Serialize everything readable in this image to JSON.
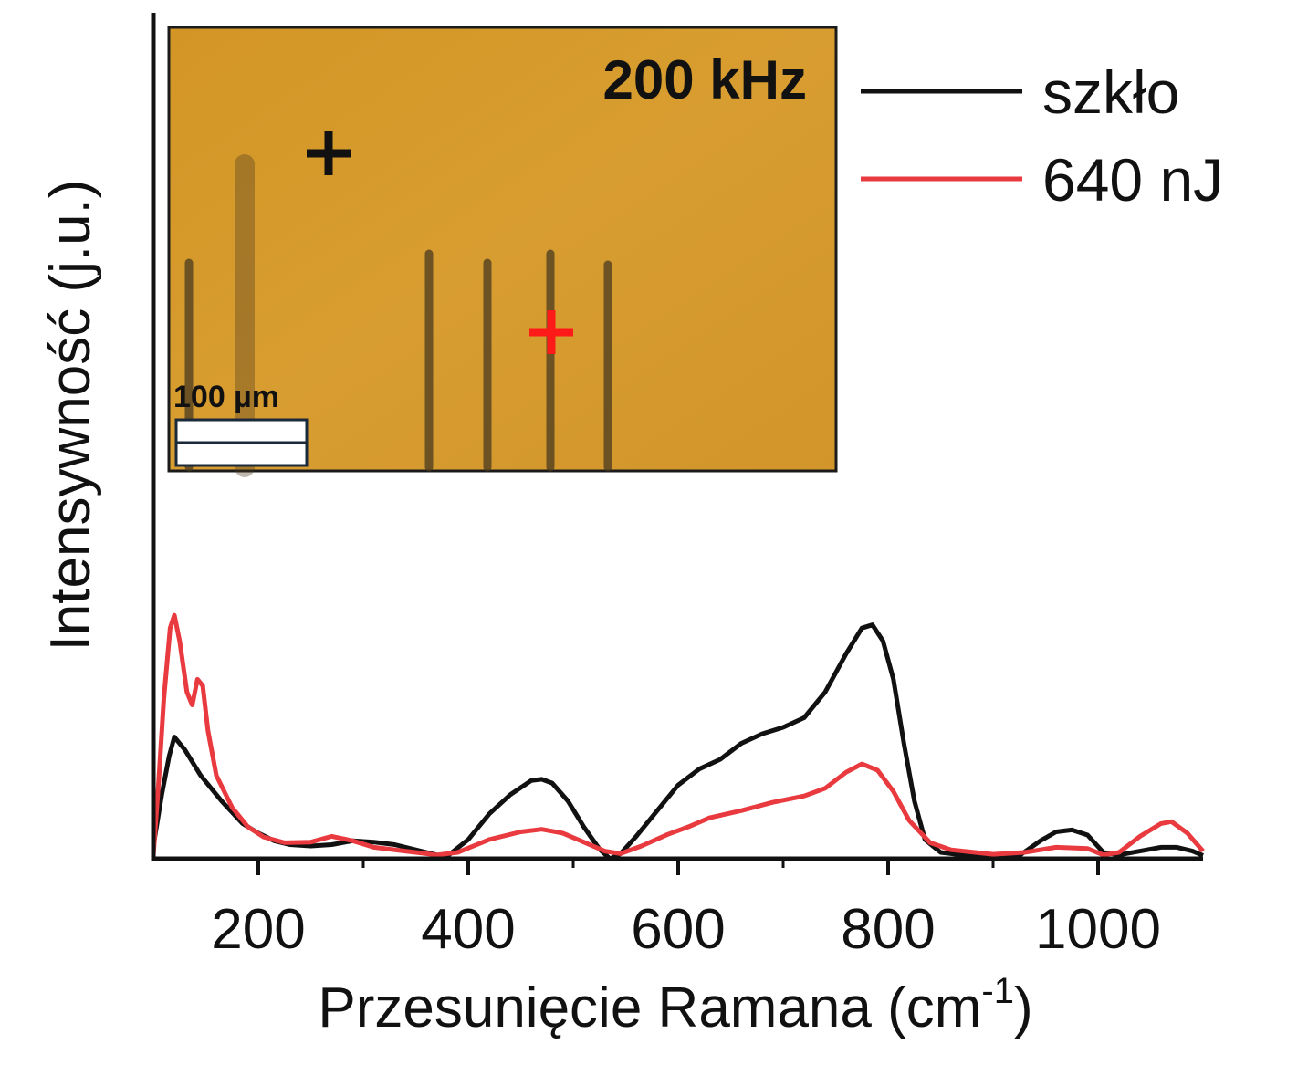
{
  "chart_data": {
    "type": "line",
    "xlabel": "Przesunięcie Ramana (cm",
    "xlabel_sup": "-1",
    "xlabel_close": ")",
    "ylabel": "Intensywność (j.u.)",
    "xlim": [
      100,
      1100
    ],
    "ylim": [
      0,
      1.32
    ],
    "x_ticks": [
      200,
      400,
      600,
      800,
      1000
    ],
    "x_tick_labels": [
      "200",
      "400",
      "600",
      "800",
      "1000"
    ],
    "x_minor_ticks": [
      300,
      500,
      700,
      900
    ],
    "legend_position": "top-right",
    "series": [
      {
        "name": "szkło",
        "color": "#111111",
        "points": [
          [
            100,
            0.02
          ],
          [
            108,
            0.1
          ],
          [
            115,
            0.16
          ],
          [
            120,
            0.19
          ],
          [
            130,
            0.17
          ],
          [
            145,
            0.13
          ],
          [
            165,
            0.09
          ],
          [
            185,
            0.055
          ],
          [
            200,
            0.04
          ],
          [
            215,
            0.028
          ],
          [
            230,
            0.022
          ],
          [
            250,
            0.02
          ],
          [
            270,
            0.022
          ],
          [
            290,
            0.028
          ],
          [
            310,
            0.026
          ],
          [
            330,
            0.022
          ],
          [
            350,
            0.014
          ],
          [
            370,
            0.006
          ],
          [
            380,
            0.004
          ],
          [
            400,
            0.03
          ],
          [
            420,
            0.07
          ],
          [
            440,
            0.1
          ],
          [
            460,
            0.122
          ],
          [
            470,
            0.124
          ],
          [
            480,
            0.118
          ],
          [
            495,
            0.09
          ],
          [
            510,
            0.05
          ],
          [
            525,
            0.015
          ],
          [
            535,
            0.0
          ],
          [
            545,
            0.008
          ],
          [
            560,
            0.035
          ],
          [
            580,
            0.075
          ],
          [
            600,
            0.115
          ],
          [
            620,
            0.14
          ],
          [
            640,
            0.155
          ],
          [
            660,
            0.18
          ],
          [
            680,
            0.195
          ],
          [
            700,
            0.205
          ],
          [
            720,
            0.22
          ],
          [
            740,
            0.26
          ],
          [
            760,
            0.32
          ],
          [
            775,
            0.36
          ],
          [
            785,
            0.365
          ],
          [
            795,
            0.34
          ],
          [
            805,
            0.28
          ],
          [
            815,
            0.18
          ],
          [
            825,
            0.09
          ],
          [
            835,
            0.03
          ],
          [
            850,
            0.01
          ],
          [
            870,
            0.006
          ],
          [
            900,
            0.004
          ],
          [
            925,
            0.005
          ],
          [
            945,
            0.028
          ],
          [
            960,
            0.042
          ],
          [
            975,
            0.045
          ],
          [
            990,
            0.037
          ],
          [
            1005,
            0.01
          ],
          [
            1020,
            0.006
          ],
          [
            1040,
            0.012
          ],
          [
            1060,
            0.018
          ],
          [
            1075,
            0.018
          ],
          [
            1090,
            0.012
          ],
          [
            1100,
            0.005
          ]
        ]
      },
      {
        "name": "640 nJ",
        "color": "#e83a3f",
        "points": [
          [
            100,
            0.005
          ],
          [
            105,
            0.12
          ],
          [
            110,
            0.25
          ],
          [
            116,
            0.36
          ],
          [
            120,
            0.38
          ],
          [
            125,
            0.34
          ],
          [
            132,
            0.26
          ],
          [
            137,
            0.24
          ],
          [
            142,
            0.28
          ],
          [
            147,
            0.27
          ],
          [
            152,
            0.2
          ],
          [
            160,
            0.13
          ],
          [
            175,
            0.08
          ],
          [
            190,
            0.05
          ],
          [
            205,
            0.034
          ],
          [
            225,
            0.025
          ],
          [
            250,
            0.026
          ],
          [
            270,
            0.035
          ],
          [
            290,
            0.028
          ],
          [
            310,
            0.018
          ],
          [
            340,
            0.012
          ],
          [
            370,
            0.006
          ],
          [
            390,
            0.01
          ],
          [
            420,
            0.03
          ],
          [
            450,
            0.042
          ],
          [
            470,
            0.046
          ],
          [
            490,
            0.04
          ],
          [
            510,
            0.026
          ],
          [
            530,
            0.012
          ],
          [
            545,
            0.008
          ],
          [
            565,
            0.02
          ],
          [
            590,
            0.038
          ],
          [
            610,
            0.05
          ],
          [
            630,
            0.064
          ],
          [
            660,
            0.075
          ],
          [
            690,
            0.088
          ],
          [
            720,
            0.098
          ],
          [
            740,
            0.11
          ],
          [
            760,
            0.135
          ],
          [
            775,
            0.148
          ],
          [
            790,
            0.138
          ],
          [
            805,
            0.105
          ],
          [
            820,
            0.06
          ],
          [
            840,
            0.025
          ],
          [
            860,
            0.014
          ],
          [
            900,
            0.007
          ],
          [
            930,
            0.01
          ],
          [
            960,
            0.018
          ],
          [
            990,
            0.016
          ],
          [
            1005,
            0.006
          ],
          [
            1020,
            0.01
          ],
          [
            1040,
            0.035
          ],
          [
            1060,
            0.055
          ],
          [
            1070,
            0.058
          ],
          [
            1085,
            0.04
          ],
          [
            1100,
            0.012
          ]
        ]
      }
    ]
  },
  "inset": {
    "title": "200 kHz",
    "scale_bar_label": "100 µm",
    "background_color": "#d59a2b",
    "markers": [
      {
        "name": "glass-point",
        "color": "#111111"
      },
      {
        "name": "modified-point",
        "color": "#ff1a1a"
      }
    ]
  }
}
